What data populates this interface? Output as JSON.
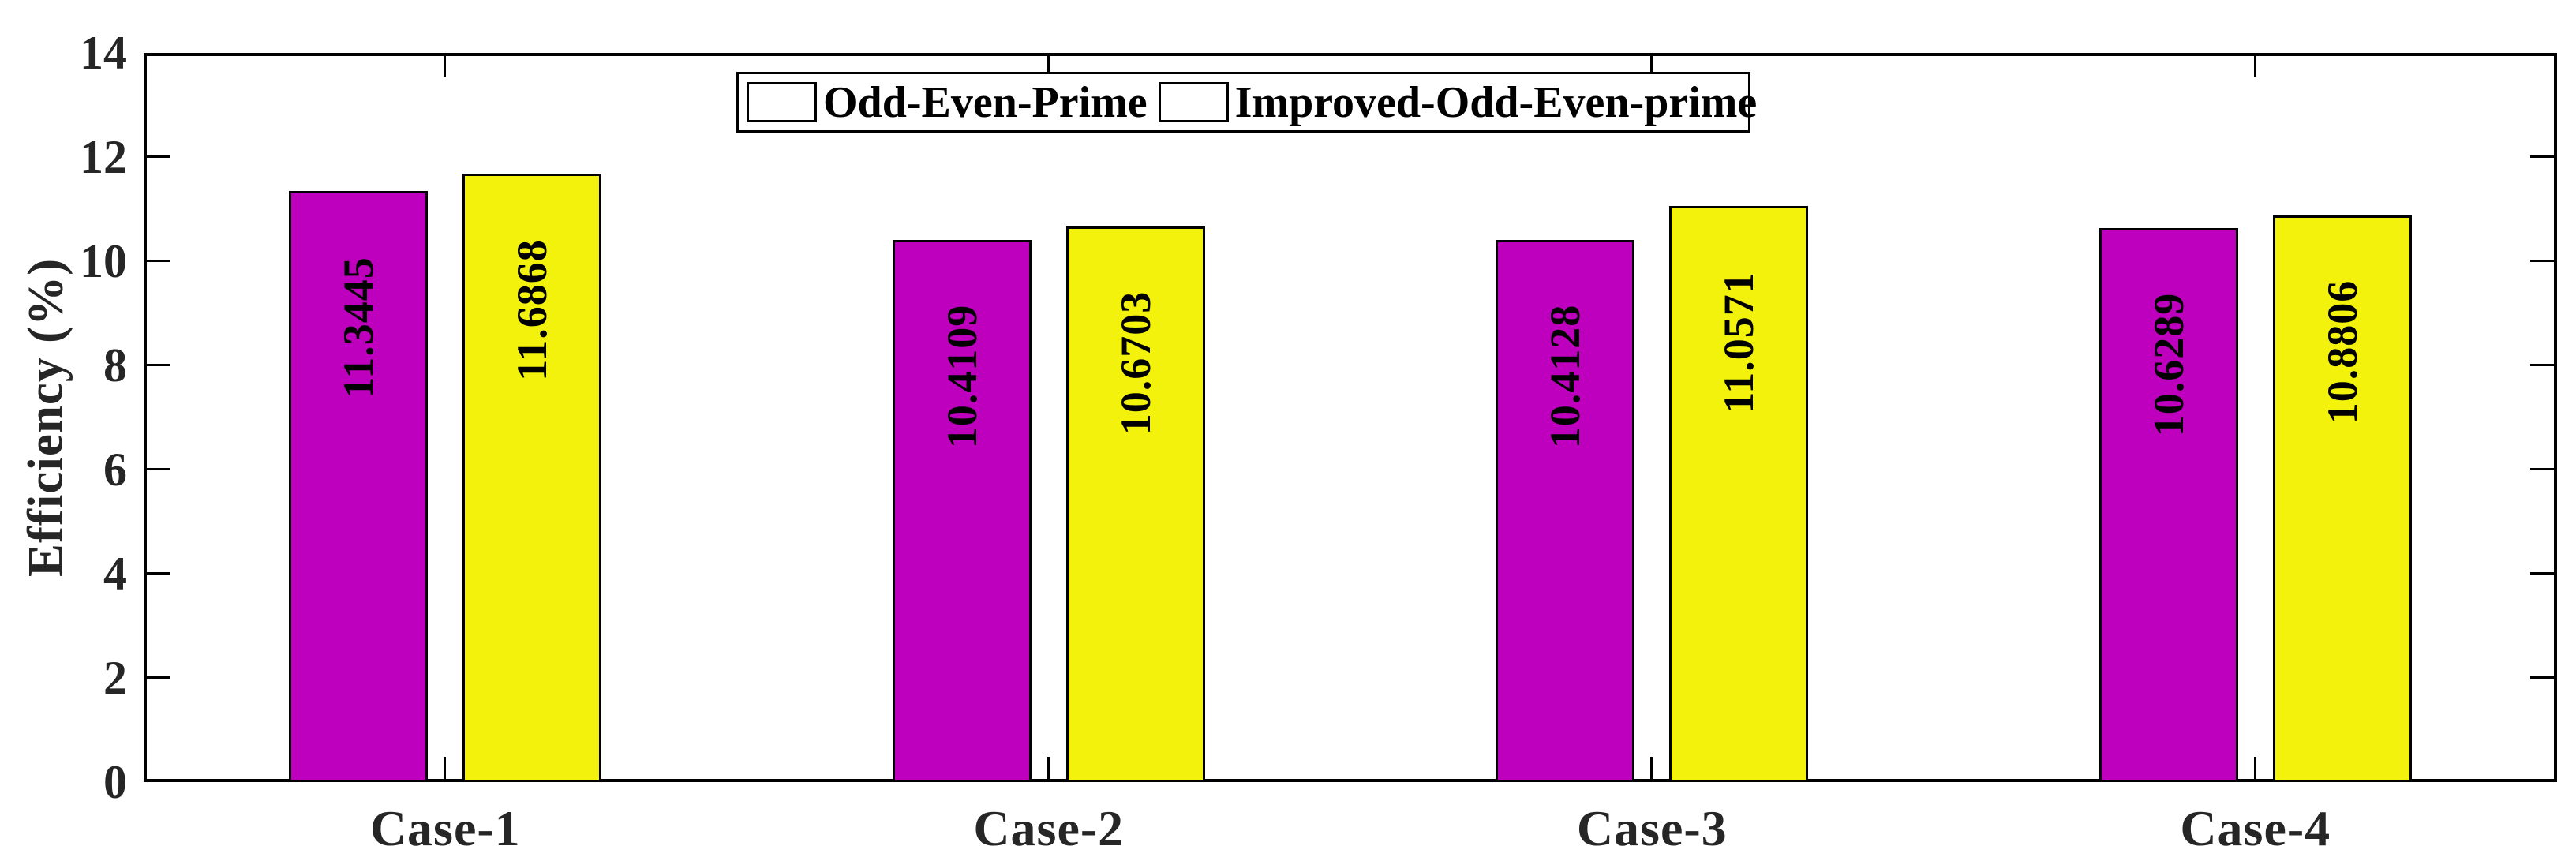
{
  "chart_data": {
    "type": "bar",
    "title": "",
    "xlabel": "",
    "ylabel": "Efficiency (%)",
    "categories": [
      "Case-1",
      "Case-2",
      "Case-3",
      "Case-4"
    ],
    "series": [
      {
        "name": "Odd-Even-Prime",
        "color": "#BE00BE",
        "values": [
          11.3445,
          10.4109,
          10.4128,
          10.6289
        ],
        "labels": [
          "11.3445",
          "10.4109",
          "10.4128",
          "10.6289"
        ]
      },
      {
        "name": "Improved-Odd-Even-prime",
        "color": "#F2F20D",
        "values": [
          11.6868,
          10.6703,
          11.0571,
          10.8806
        ],
        "labels": [
          "11.6868",
          "10.6703",
          "11.0571",
          "10.8806"
        ]
      }
    ],
    "ylim": [
      0,
      14
    ],
    "yticks": [
      0,
      2,
      4,
      6,
      8,
      10,
      12,
      14
    ],
    "ytick_labels": [
      "0",
      "2",
      "4",
      "6",
      "8",
      "10",
      "12",
      "14"
    ],
    "grid": false,
    "legend_position": "top-center",
    "value_labels_rotation": -90,
    "colors": {
      "axis": "#000000",
      "tick_label": "#262626",
      "value_label": "#000000",
      "bar_edge": "#000000",
      "background": "#ffffff"
    }
  }
}
